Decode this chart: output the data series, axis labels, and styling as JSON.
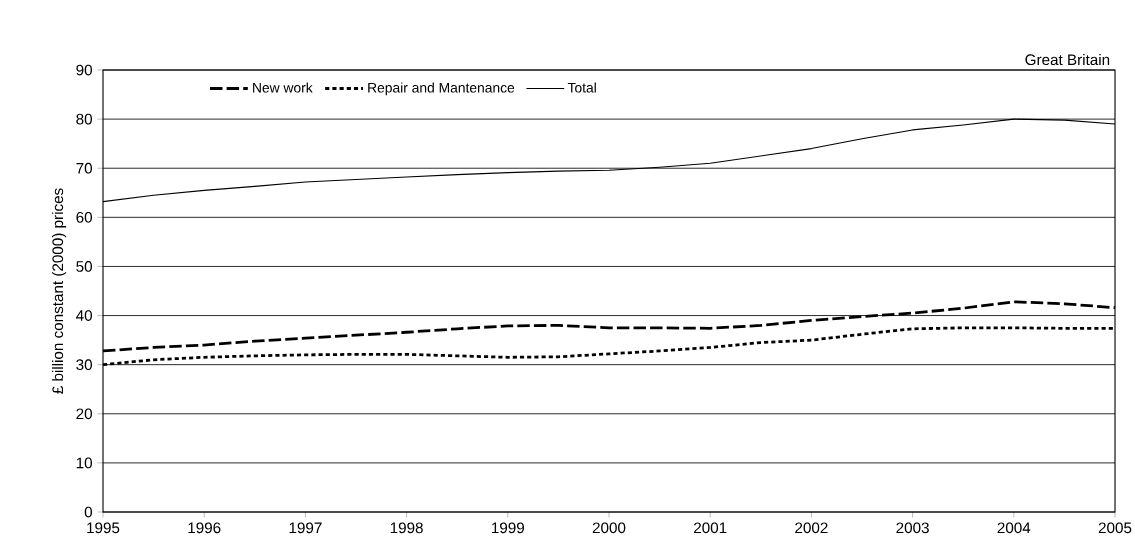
{
  "chart_data": {
    "type": "line",
    "ylabel": "£ billion constant (2000) prices",
    "annotations": [
      "Great Britain"
    ],
    "x": [
      1995,
      1995.5,
      1996,
      1996.5,
      1997,
      1997.5,
      1998,
      1998.5,
      1999,
      1999.5,
      2000,
      2000.5,
      2001,
      2001.5,
      2002,
      2002.5,
      2003,
      2003.5,
      2004,
      2004.5,
      2005
    ],
    "series": [
      {
        "name": "New work",
        "color": "#000000",
        "line_style": "dashed",
        "values": [
          32.8,
          33.5,
          34,
          34.8,
          35.4,
          36,
          36.6,
          37.3,
          37.9,
          38,
          37.5,
          37.5,
          37.4,
          38,
          39,
          39.8,
          40.5,
          41.5,
          42.8,
          42.4,
          41.6
        ]
      },
      {
        "name": "Repair and Mantenance",
        "color": "#000000",
        "line_style": "dotted",
        "values": [
          30,
          31,
          31.5,
          31.8,
          32,
          32.1,
          32.1,
          31.8,
          31.5,
          31.6,
          32.2,
          32.8,
          33.5,
          34.5,
          35,
          36.2,
          37.3,
          37.5,
          37.5,
          37.4,
          37.4
        ]
      },
      {
        "name": "Total",
        "color": "#000000",
        "line_style": "solid",
        "values": [
          63.2,
          64.5,
          65.5,
          66.3,
          67.2,
          67.7,
          68.2,
          68.7,
          69.1,
          69.4,
          69.6,
          70.2,
          71,
          72.5,
          74,
          76,
          77.8,
          78.8,
          80,
          79.8,
          79
        ]
      }
    ],
    "xlim": [
      1995,
      2005
    ],
    "xticks": [
      1995,
      1996,
      1997,
      1998,
      1999,
      2000,
      2001,
      2002,
      2003,
      2004,
      2005
    ],
    "ylim": [
      0,
      90
    ],
    "yticks": [
      0,
      10,
      20,
      30,
      40,
      50,
      60,
      70,
      80,
      90
    ],
    "grid": "y",
    "legend": "top",
    "marker": "none"
  }
}
